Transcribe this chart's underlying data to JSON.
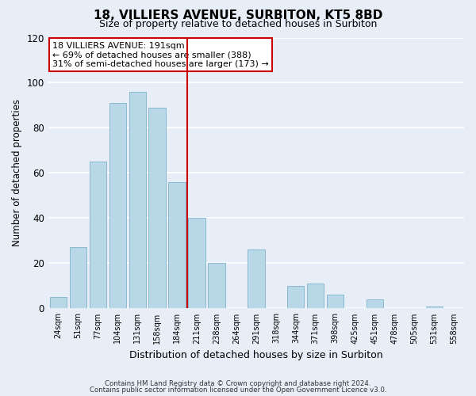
{
  "title": "18, VILLIERS AVENUE, SURBITON, KT5 8BD",
  "subtitle": "Size of property relative to detached houses in Surbiton",
  "xlabel": "Distribution of detached houses by size in Surbiton",
  "ylabel": "Number of detached properties",
  "categories": [
    "24sqm",
    "51sqm",
    "77sqm",
    "104sqm",
    "131sqm",
    "158sqm",
    "184sqm",
    "211sqm",
    "238sqm",
    "264sqm",
    "291sqm",
    "318sqm",
    "344sqm",
    "371sqm",
    "398sqm",
    "425sqm",
    "451sqm",
    "478sqm",
    "505sqm",
    "531sqm",
    "558sqm"
  ],
  "values": [
    5,
    27,
    65,
    91,
    96,
    89,
    56,
    40,
    20,
    0,
    26,
    0,
    10,
    11,
    6,
    0,
    4,
    0,
    0,
    1,
    0
  ],
  "bar_color": "#b8d8e8",
  "bar_edge_color": "#89b8d0",
  "ylim": [
    0,
    120
  ],
  "yticks": [
    0,
    20,
    40,
    60,
    80,
    100,
    120
  ],
  "vline_x": 6.5,
  "vline_color": "#cc0000",
  "annotation_title": "18 VILLIERS AVENUE: 191sqm",
  "annotation_line1": "← 69% of detached houses are smaller (388)",
  "annotation_line2": "31% of semi-detached houses are larger (173) →",
  "annotation_box_color": "#ffffff",
  "annotation_box_edge": "#cc0000",
  "footer1": "Contains HM Land Registry data © Crown copyright and database right 2024.",
  "footer2": "Contains public sector information licensed under the Open Government Licence v3.0.",
  "bg_color": "#e8eef8",
  "plot_bg_color": "#e8eef8",
  "title_fontsize": 11,
  "subtitle_fontsize": 9
}
